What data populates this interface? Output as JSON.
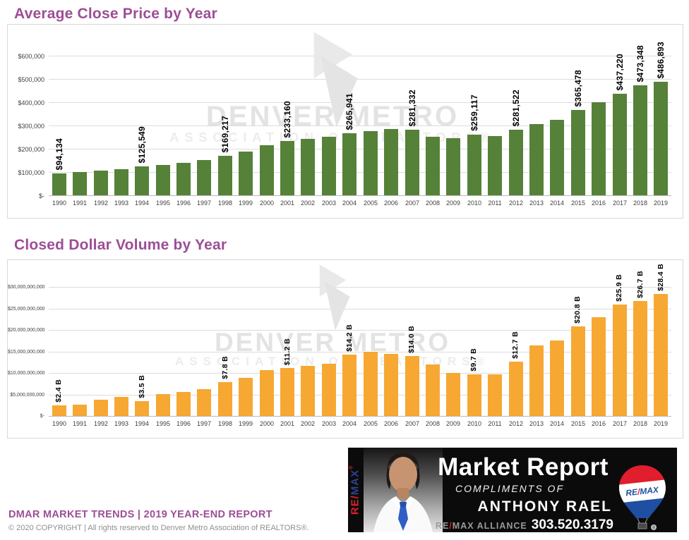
{
  "watermark": {
    "line1": "DENVER METRO",
    "line2": "ASSOCIATION OF REALTORS®"
  },
  "chart_data": [
    {
      "type": "bar",
      "title": "Average Close Price by Year",
      "xlabel": "",
      "ylabel": "",
      "legend": "none",
      "grid": true,
      "bar_color": "#568139",
      "ylim": [
        0,
        600000
      ],
      "y_ticks": [
        "$600,000",
        "$500,000",
        "$400,000",
        "$300,000",
        "$200,000",
        "$100,000",
        "$-"
      ],
      "categories": [
        "1990",
        "1991",
        "1992",
        "1993",
        "1994",
        "1995",
        "1996",
        "1997",
        "1998",
        "1999",
        "2000",
        "2001",
        "2002",
        "2003",
        "2004",
        "2005",
        "2006",
        "2007",
        "2008",
        "2009",
        "2010",
        "2011",
        "2012",
        "2013",
        "2014",
        "2015",
        "2016",
        "2017",
        "2018",
        "2019"
      ],
      "values": [
        94134,
        101000,
        105000,
        112000,
        125549,
        131000,
        139000,
        150000,
        169217,
        189000,
        215000,
        233160,
        243000,
        252000,
        265941,
        277000,
        285000,
        281332,
        250000,
        246000,
        259117,
        255000,
        281522,
        305000,
        324000,
        365478,
        399000,
        437220,
        473348,
        486893
      ],
      "data_labels": [
        "$94,134",
        "",
        "",
        "",
        "$125,549",
        "",
        "",
        "",
        "$169,217",
        "",
        "",
        "$233,160",
        "",
        "",
        "$265,941",
        "",
        "",
        "$281,332",
        "",
        "",
        "$259,117",
        "",
        "$281,522",
        "",
        "",
        "$365,478",
        "",
        "$437,220",
        "$473,348",
        "$486,893"
      ]
    },
    {
      "type": "bar",
      "title": "Closed Dollar Volume by Year",
      "xlabel": "",
      "ylabel": "",
      "legend": "none",
      "grid": true,
      "bar_color": "#F6A833",
      "ylim": [
        0,
        30
      ],
      "unit": "billions USD",
      "y_ticks": [
        "$30,000,000,000",
        "$25,000,000,000",
        "$20,000,000,000",
        "$15,000,000,000",
        "$10,000,000,000",
        "$5,000,000,000",
        "$-"
      ],
      "categories": [
        "1990",
        "1991",
        "1992",
        "1993",
        "1994",
        "1995",
        "1996",
        "1997",
        "1998",
        "1999",
        "2000",
        "2001",
        "2002",
        "2003",
        "2004",
        "2005",
        "2006",
        "2007",
        "2008",
        "2009",
        "2010",
        "2011",
        "2012",
        "2013",
        "2014",
        "2015",
        "2016",
        "2017",
        "2018",
        "2019"
      ],
      "values": [
        2.4,
        2.6,
        3.7,
        4.5,
        3.5,
        5.0,
        5.6,
        6.2,
        7.8,
        8.8,
        10.6,
        11.2,
        11.7,
        12.2,
        14.2,
        14.9,
        14.4,
        14.0,
        11.9,
        10.0,
        9.7,
        9.6,
        12.7,
        16.4,
        17.6,
        20.8,
        22.9,
        25.9,
        26.7,
        28.4
      ],
      "data_labels": [
        "$2.4 B",
        "",
        "",
        "",
        "$3.5 B",
        "",
        "",
        "",
        "$7.8 B",
        "",
        "",
        "$11.2 B",
        "",
        "",
        "$14.2 B",
        "",
        "",
        "$14.0 B",
        "",
        "",
        "$9.7 B",
        "",
        "$12.7 B",
        "",
        "",
        "$20.8 B",
        "",
        "$25.9 B",
        "$26.7 B",
        "$28.4 B"
      ]
    }
  ],
  "footer": {
    "line1": "DMAR MARKET TRENDS | 2019 YEAR-END REPORT",
    "line2": "© 2020 COPYRIGHT | All rights reserved to Denver Metro Association of REALTORS®."
  },
  "banner": {
    "vertical_brand_re": "RE/",
    "vertical_brand_max": "MAX",
    "vertical_brand_reg": "®",
    "title": "Market Report",
    "subtitle": "COMPLIMENTS OF",
    "agent_name": "ANTHONY RAEL",
    "brokerage_re": "RE",
    "brokerage_slash": "/",
    "brokerage_rest": "MAX ALLIANCE",
    "phone": "303.520.3179",
    "balloon_re": "RE",
    "balloon_slash": "/",
    "balloon_max": "MAX",
    "balloon_reg": "®"
  },
  "colors": {
    "close_price_bar": "#568139",
    "dollar_volume_bar": "#F6A833",
    "accent_purple": "#9C4E96",
    "remax_red": "#E02127",
    "remax_blue": "#1E4FA3",
    "banner_background": "#0B0B0B"
  }
}
